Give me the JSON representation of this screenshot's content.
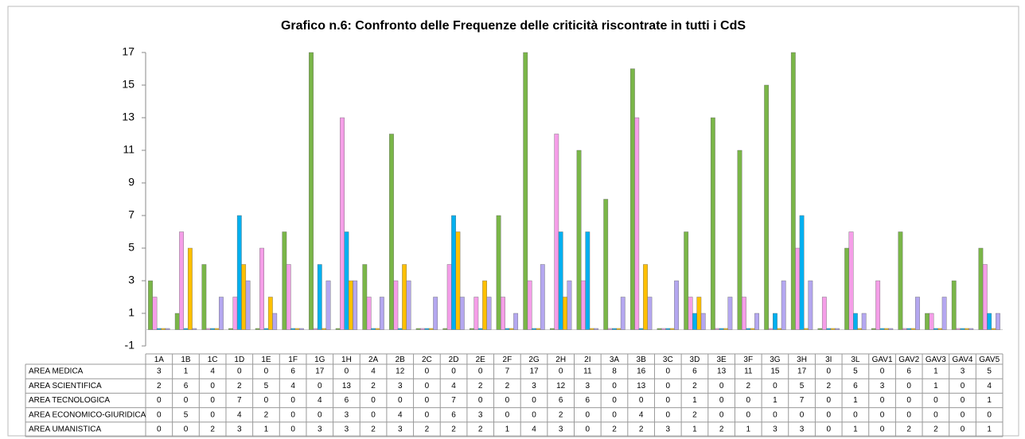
{
  "chart_data": {
    "type": "bar",
    "title": "Grafico n.6: Confronto delle Frequenze delle criticità riscontrate in tutti i CdS",
    "categories": [
      "1A",
      "1B",
      "1C",
      "1D",
      "1E",
      "1F",
      "1G",
      "1H",
      "2A",
      "2B",
      "2C",
      "2D",
      "2E",
      "2F",
      "2G",
      "2H",
      "2I",
      "3A",
      "3B",
      "3C",
      "3D",
      "3E",
      "3F",
      "3G",
      "3H",
      "3I",
      "3L",
      "GAV1",
      "GAV2",
      "GAV3",
      "GAV4",
      "GAV5"
    ],
    "series": [
      {
        "name": "AREA MEDICA",
        "color": "#7ab648",
        "values": [
          3,
          1,
          4,
          0,
          0,
          6,
          17,
          0,
          4,
          12,
          0,
          0,
          0,
          7,
          17,
          0,
          11,
          8,
          16,
          0,
          6,
          13,
          11,
          15,
          17,
          0,
          5,
          0,
          6,
          1,
          3,
          5
        ]
      },
      {
        "name": "AREA SCIENTIFICA",
        "color": "#f59ee8",
        "values": [
          2,
          6,
          0,
          2,
          5,
          4,
          0,
          13,
          2,
          3,
          0,
          4,
          2,
          2,
          3,
          12,
          3,
          0,
          13,
          0,
          2,
          0,
          2,
          0,
          5,
          2,
          6,
          3,
          0,
          1,
          0,
          4
        ]
      },
      {
        "name": "AREA TECNOLOGICA",
        "color": "#00b0f0",
        "values": [
          0,
          0,
          0,
          7,
          0,
          0,
          4,
          6,
          0,
          0,
          0,
          7,
          0,
          0,
          0,
          6,
          6,
          0,
          0,
          0,
          1,
          0,
          0,
          1,
          7,
          0,
          1,
          0,
          0,
          0,
          0,
          1
        ]
      },
      {
        "name": "AREA ECONOMICO-GIURIDICA",
        "color": "#ffc000",
        "values": [
          0,
          5,
          0,
          4,
          2,
          0,
          0,
          3,
          0,
          4,
          0,
          6,
          3,
          0,
          0,
          2,
          0,
          0,
          4,
          0,
          2,
          0,
          0,
          0,
          0,
          0,
          0,
          0,
          0,
          0,
          0,
          0
        ]
      },
      {
        "name": "AREA UMANISTICA",
        "color": "#b4a7f0",
        "values": [
          0,
          0,
          2,
          3,
          1,
          0,
          3,
          3,
          2,
          3,
          2,
          2,
          2,
          1,
          4,
          3,
          0,
          2,
          2,
          3,
          1,
          2,
          1,
          3,
          3,
          0,
          1,
          0,
          2,
          2,
          0,
          1
        ]
      }
    ],
    "ylim": [
      -1,
      17
    ],
    "yticks": [
      -1,
      1,
      3,
      5,
      7,
      9,
      11,
      13,
      15,
      17
    ]
  }
}
